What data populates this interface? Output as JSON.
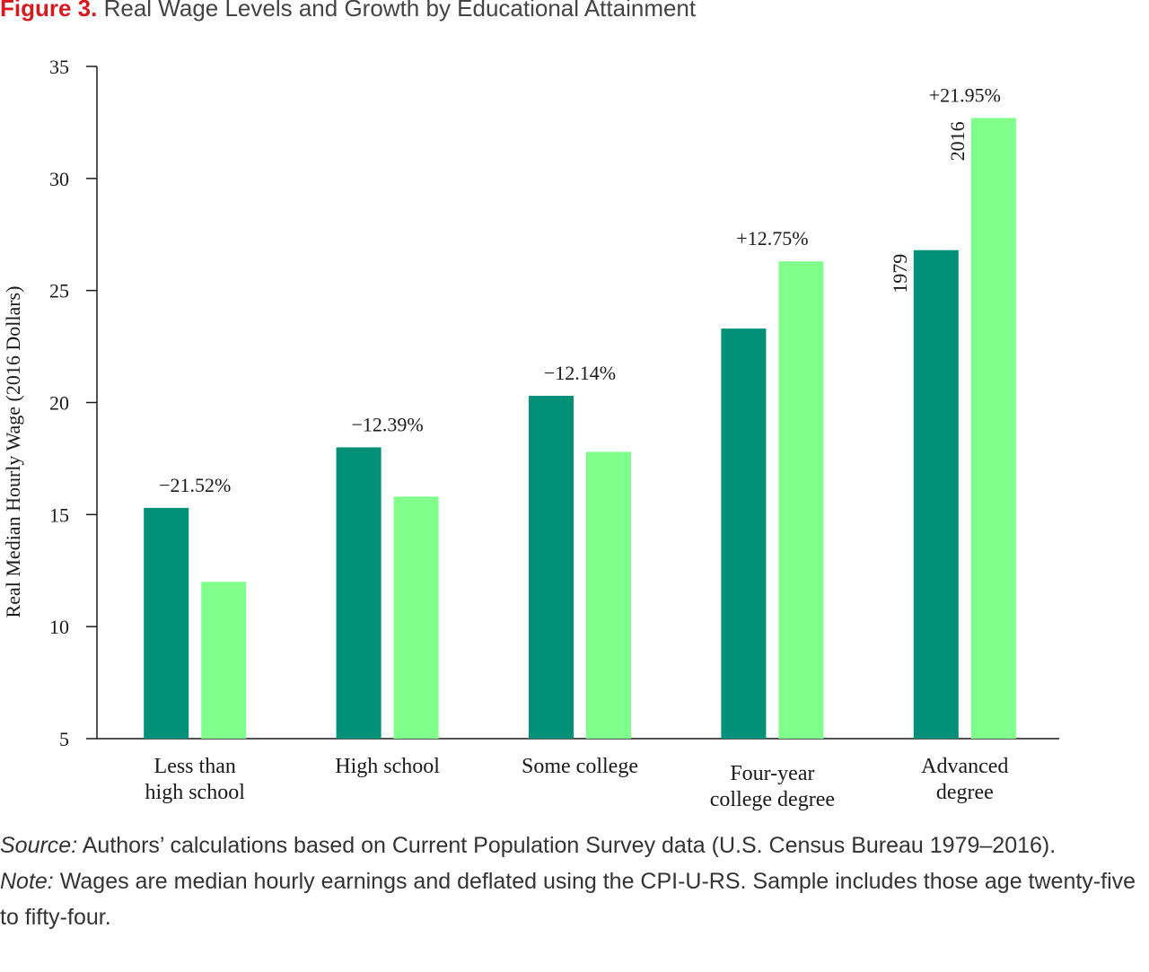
{
  "figure": {
    "number": "Figure 3.",
    "title": "Real Wage Levels and Growth by Educational Attainment"
  },
  "colors": {
    "series_1979": "#009178",
    "series_2016": "#80ff8c",
    "axis": "#1a1a1a"
  },
  "chart_data": {
    "type": "bar",
    "categories": [
      [
        "Less than",
        "high school"
      ],
      [
        "High school"
      ],
      [
        "Some college"
      ],
      [
        "Four-year",
        "college degree"
      ],
      [
        "Advanced",
        "degree"
      ]
    ],
    "series": [
      {
        "name": "1979",
        "values": [
          15.3,
          18.0,
          20.3,
          23.3,
          26.8
        ]
      },
      {
        "name": "2016",
        "values": [
          12.0,
          15.8,
          17.8,
          26.3,
          32.7
        ]
      }
    ],
    "change_labels": [
      "−21.52%",
      "−12.39%",
      "−12.14%",
      "+12.75%",
      "+21.95%"
    ],
    "ylabel": "Real Median Hourly Wage (2016 Dollars)",
    "xlabel": "",
    "ylim": [
      5,
      35
    ],
    "yticks": [
      5,
      10,
      15,
      20,
      25,
      30,
      35
    ],
    "grid": false,
    "legend": "series names printed vertically beside the Advanced degree bars"
  },
  "notes": {
    "source_label": "Source:",
    "source_text": " Authors’ calculations based on Current Population Survey data (U.S. Census Bureau 1979–2016).",
    "note_label": "Note:",
    "note_text": " Wages are median hourly earnings and deflated using the CPI-U-RS. Sample includes those age twenty-five to fifty-four."
  }
}
